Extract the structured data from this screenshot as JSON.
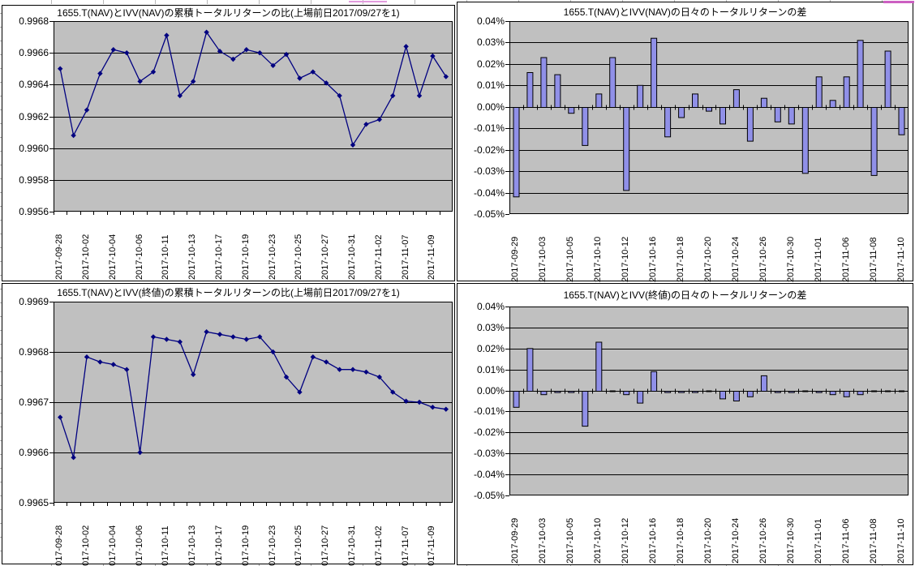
{
  "colors": {
    "plot_bg": "#C0C0C0",
    "grid_line": "#000000",
    "line_series": "#000080",
    "bar_fill": "#9090E8",
    "bar_border": "#000000",
    "panel_border": "#000000",
    "accent_magenta": "#CC5FC2"
  },
  "chart_data": [
    {
      "id": "cumulative-ratio-nav",
      "type": "line",
      "title": "1655.T(NAV)とIVV(NAV)の累積トータルリターンの比(上場前日2017/09/27を1)",
      "xlabel": "",
      "ylabel": "",
      "grid": true,
      "legend_position": "none",
      "ylim": [
        0.9956,
        0.9968
      ],
      "ytick_step": 0.0002,
      "ytick_labels": [
        "0.9968",
        "0.9966",
        "0.9964",
        "0.9962",
        "0.9960",
        "0.9958",
        "0.9956"
      ],
      "xlabel_every": 2,
      "categories": [
        "2017-09-28",
        "2017-09-29",
        "2017-10-02",
        "2017-10-03",
        "2017-10-04",
        "2017-10-05",
        "2017-10-06",
        "2017-10-10",
        "2017-10-11",
        "2017-10-12",
        "2017-10-13",
        "2017-10-16",
        "2017-10-17",
        "2017-10-18",
        "2017-10-19",
        "2017-10-20",
        "2017-10-23",
        "2017-10-24",
        "2017-10-25",
        "2017-10-26",
        "2017-10-27",
        "2017-10-30",
        "2017-10-31",
        "2017-11-01",
        "2017-11-02",
        "2017-11-06",
        "2017-11-07",
        "2017-11-08",
        "2017-11-09",
        "2017-11-10"
      ],
      "values": [
        0.9965,
        0.99608,
        0.99624,
        0.99647,
        0.99662,
        0.9966,
        0.99642,
        0.99648,
        0.99671,
        0.99633,
        0.99642,
        0.99673,
        0.99661,
        0.99656,
        0.99662,
        0.9966,
        0.99652,
        0.99659,
        0.99644,
        0.99648,
        0.99641,
        0.99633,
        0.99602,
        0.99615,
        0.99618,
        0.99633,
        0.99664,
        0.99633,
        0.99658,
        0.99645
      ]
    },
    {
      "id": "daily-diff-nav",
      "type": "bar",
      "title": "1655.T(NAV)とIVV(NAV)の日々のトータルリターンの差",
      "xlabel": "",
      "ylabel": "",
      "grid": true,
      "legend_position": "none",
      "ylim": [
        -0.05,
        0.04
      ],
      "ytick_step": 0.01,
      "ytick_labels": [
        "0.04%",
        "0.03%",
        "0.02%",
        "0.01%",
        "0.00%",
        "-0.01%",
        "-0.02%",
        "-0.03%",
        "-0.04%",
        "-0.05%"
      ],
      "xlabel_every": 2,
      "categories": [
        "2017-09-29",
        "2017-10-02",
        "2017-10-03",
        "2017-10-04",
        "2017-10-05",
        "2017-10-06",
        "2017-10-10",
        "2017-10-11",
        "2017-10-12",
        "2017-10-13",
        "2017-10-16",
        "2017-10-17",
        "2017-10-18",
        "2017-10-19",
        "2017-10-20",
        "2017-10-23",
        "2017-10-24",
        "2017-10-25",
        "2017-10-26",
        "2017-10-27",
        "2017-10-30",
        "2017-10-31",
        "2017-11-01",
        "2017-11-02",
        "2017-11-06",
        "2017-11-07",
        "2017-11-08",
        "2017-11-09",
        "2017-11-10"
      ],
      "values": [
        -0.042,
        0.016,
        0.023,
        0.015,
        -0.003,
        -0.018,
        0.006,
        0.023,
        -0.039,
        0.01,
        0.032,
        -0.014,
        -0.005,
        0.006,
        -0.002,
        -0.008,
        0.008,
        -0.016,
        0.004,
        -0.007,
        -0.008,
        -0.031,
        0.014,
        0.003,
        0.014,
        0.031,
        -0.032,
        0.026,
        -0.013
      ]
    },
    {
      "id": "cumulative-ratio-close",
      "type": "line",
      "title": "1655.T(NAV)とIVV(終値)の累積トータルリターンの比(上場前日2017/09/27を1)",
      "xlabel": "",
      "ylabel": "",
      "grid": true,
      "legend_position": "none",
      "ylim": [
        0.9965,
        0.9969
      ],
      "ytick_step": 0.0001,
      "ytick_labels": [
        "0.9969",
        "0.9968",
        "0.9967",
        "0.9966",
        "0.9965"
      ],
      "xlabel_every": 2,
      "categories": [
        "2017-09-28",
        "2017-09-29",
        "2017-10-02",
        "2017-10-03",
        "2017-10-04",
        "2017-10-05",
        "2017-10-06",
        "2017-10-10",
        "2017-10-11",
        "2017-10-12",
        "2017-10-13",
        "2017-10-16",
        "2017-10-17",
        "2017-10-18",
        "2017-10-19",
        "2017-10-20",
        "2017-10-23",
        "2017-10-24",
        "2017-10-25",
        "2017-10-26",
        "2017-10-27",
        "2017-10-30",
        "2017-10-31",
        "2017-11-01",
        "2017-11-02",
        "2017-11-06",
        "2017-11-07",
        "2017-11-08",
        "2017-11-09",
        "2017-11-10"
      ],
      "values": [
        0.99667,
        0.99659,
        0.99679,
        0.99678,
        0.996775,
        0.996765,
        0.9966,
        0.99683,
        0.996825,
        0.99682,
        0.996755,
        0.99684,
        0.996835,
        0.99683,
        0.996825,
        0.99683,
        0.9968,
        0.99675,
        0.99672,
        0.99679,
        0.99678,
        0.996765,
        0.996765,
        0.99676,
        0.99675,
        0.99672,
        0.996702,
        0.9967,
        0.99669,
        0.996686
      ]
    },
    {
      "id": "daily-diff-close",
      "type": "bar",
      "title": "1655.T(NAV)とIVV(終値)の日々のトータルリターンの差",
      "xlabel": "",
      "ylabel": "",
      "grid": true,
      "legend_position": "none",
      "ylim": [
        -0.05,
        0.04
      ],
      "ytick_step": 0.01,
      "ytick_labels": [
        "0.04%",
        "0.03%",
        "0.02%",
        "0.01%",
        "0.00%",
        "-0.01%",
        "-0.02%",
        "-0.03%",
        "-0.04%",
        "-0.05%"
      ],
      "xlabel_every": 2,
      "categories": [
        "2017-09-29",
        "2017-10-02",
        "2017-10-03",
        "2017-10-04",
        "2017-10-05",
        "2017-10-06",
        "2017-10-10",
        "2017-10-11",
        "2017-10-12",
        "2017-10-13",
        "2017-10-16",
        "2017-10-17",
        "2017-10-18",
        "2017-10-19",
        "2017-10-20",
        "2017-10-23",
        "2017-10-24",
        "2017-10-25",
        "2017-10-26",
        "2017-10-27",
        "2017-10-30",
        "2017-10-31",
        "2017-11-01",
        "2017-11-02",
        "2017-11-06",
        "2017-11-07",
        "2017-11-08",
        "2017-11-09",
        "2017-11-10"
      ],
      "values": [
        -0.008,
        0.02,
        -0.002,
        -0.001,
        -0.001,
        -0.017,
        0.023,
        0.0,
        -0.002,
        -0.006,
        0.009,
        -0.001,
        -0.001,
        -0.001,
        0.0,
        -0.004,
        -0.005,
        -0.003,
        0.007,
        -0.001,
        -0.001,
        0.0,
        -0.001,
        -0.002,
        -0.003,
        -0.002,
        0.0,
        0.0,
        0.0
      ]
    }
  ]
}
